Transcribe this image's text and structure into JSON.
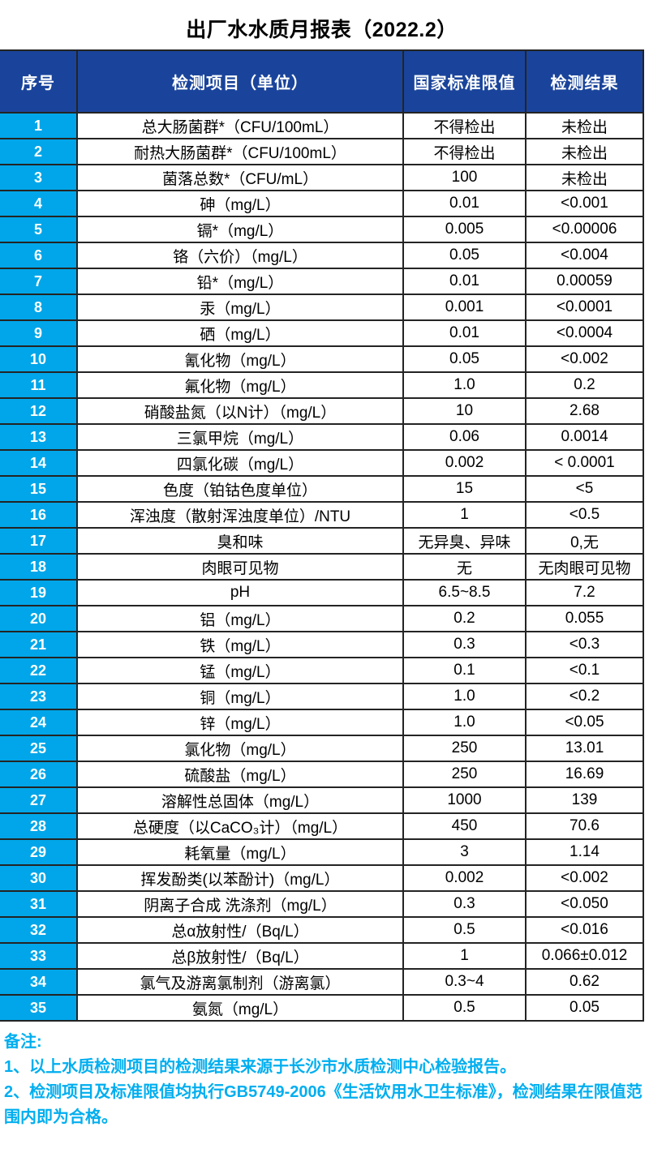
{
  "title": "出厂水水质月报表（2022.2）",
  "table": {
    "headers": [
      "序号",
      "检测项目（单位）",
      "国家标准限值",
      "检测结果"
    ],
    "rows": [
      {
        "no": "1",
        "item": "总大肠菌群*（CFU/100mL）",
        "limit": "不得检出",
        "result": "未检出"
      },
      {
        "no": "2",
        "item": "耐热大肠菌群*（CFU/100mL）",
        "limit": "不得检出",
        "result": "未检出"
      },
      {
        "no": "3",
        "item": "菌落总数*（CFU/mL）",
        "limit": "100",
        "result": "未检出"
      },
      {
        "no": "4",
        "item": "砷（mg/L）",
        "limit": "0.01",
        "result": "<0.001"
      },
      {
        "no": "5",
        "item": "镉*（mg/L）",
        "limit": "0.005",
        "result": "<0.00006"
      },
      {
        "no": "6",
        "item": "铬（六价）（mg/L）",
        "limit": "0.05",
        "result": "<0.004"
      },
      {
        "no": "7",
        "item": "铅*（mg/L）",
        "limit": "0.01",
        "result": "0.00059"
      },
      {
        "no": "8",
        "item": "汞（mg/L）",
        "limit": "0.001",
        "result": "<0.0001"
      },
      {
        "no": "9",
        "item": "硒（mg/L）",
        "limit": "0.01",
        "result": "<0.0004"
      },
      {
        "no": "10",
        "item": "氰化物（mg/L）",
        "limit": "0.05",
        "result": "<0.002"
      },
      {
        "no": "11",
        "item": "氟化物（mg/L）",
        "limit": "1.0",
        "result": "0.2"
      },
      {
        "no": "12",
        "item": "硝酸盐氮（以N计）（mg/L）",
        "limit": "10",
        "result": "2.68"
      },
      {
        "no": "13",
        "item": "三氯甲烷（mg/L）",
        "limit": "0.06",
        "result": "0.0014"
      },
      {
        "no": "14",
        "item": "四氯化碳（mg/L）",
        "limit": "0.002",
        "result": "< 0.0001"
      },
      {
        "no": "15",
        "item": "色度（铂钴色度单位）",
        "limit": "15",
        "result": "<5"
      },
      {
        "no": "16",
        "item": "浑浊度（散射浑浊度单位）/NTU",
        "limit": "1",
        "result": "<0.5"
      },
      {
        "no": "17",
        "item": "臭和味",
        "limit": "无异臭、异味",
        "result": "0,无"
      },
      {
        "no": "18",
        "item": "肉眼可见物",
        "limit": "无",
        "result": "无肉眼可见物"
      },
      {
        "no": "19",
        "item": "pH",
        "limit": "6.5~8.5",
        "result": "7.2"
      },
      {
        "no": "20",
        "item": "铝（mg/L）",
        "limit": "0.2",
        "result": "0.055"
      },
      {
        "no": "21",
        "item": "铁（mg/L）",
        "limit": "0.3",
        "result": "<0.3"
      },
      {
        "no": "22",
        "item": "锰（mg/L）",
        "limit": "0.1",
        "result": "<0.1"
      },
      {
        "no": "23",
        "item": "铜（mg/L）",
        "limit": "1.0",
        "result": "<0.2"
      },
      {
        "no": "24",
        "item": "锌（mg/L）",
        "limit": "1.0",
        "result": "<0.05"
      },
      {
        "no": "25",
        "item": "氯化物（mg/L）",
        "limit": "250",
        "result": "13.01"
      },
      {
        "no": "26",
        "item": "硫酸盐（mg/L）",
        "limit": "250",
        "result": "16.69"
      },
      {
        "no": "27",
        "item": "溶解性总固体（mg/L）",
        "limit": "1000",
        "result": "139"
      },
      {
        "no": "28",
        "item": "总硬度（以CaCO₃计）（mg/L）",
        "limit": "450",
        "result": "70.6"
      },
      {
        "no": "29",
        "item": "耗氧量（mg/L）",
        "limit": "3",
        "result": "1.14"
      },
      {
        "no": "30",
        "item": "挥发酚类(以苯酚计)（mg/L）",
        "limit": "0.002",
        "result": "<0.002"
      },
      {
        "no": "31",
        "item": "阴离子合成 洗涤剂（mg/L）",
        "limit": "0.3",
        "result": "<0.050"
      },
      {
        "no": "32",
        "item": "总α放射性/（Bq/L）",
        "limit": "0.5",
        "result": "<0.016"
      },
      {
        "no": "33",
        "item": "总β放射性/（Bq/L）",
        "limit": "1",
        "result": "0.066±0.012"
      },
      {
        "no": "34",
        "item": "氯气及游离氯制剂（游离氯）",
        "limit": "0.3~4",
        "result": "0.62"
      },
      {
        "no": "35",
        "item": "氨氮（mg/L）",
        "limit": "0.5",
        "result": "0.05"
      }
    ]
  },
  "notes": {
    "label": "备注:",
    "lines": [
      "1、以上水质检测项目的检测结果来源于长沙市水质检测中心检验报告。",
      "2、检测项目及标准限值均执行GB5749-2006《生活饮用水卫生标准》，检测结果在限值范围内即为合格。"
    ]
  },
  "colors": {
    "header_background": "#1A449B",
    "index_column_background": "#00A6E9",
    "notes_text": "#00AEEF",
    "border": "#242424",
    "title_text": "#000000"
  }
}
